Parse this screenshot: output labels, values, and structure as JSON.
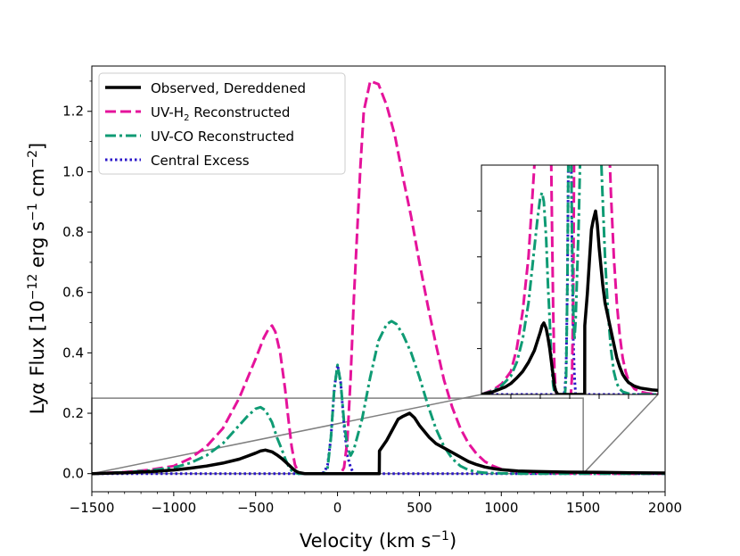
{
  "chart_data": {
    "type": "line",
    "title": "",
    "xlabel": {
      "base": "Velocity (km s",
      "sup": "−1",
      "tail": ")"
    },
    "ylabel": {
      "base": "Lyα Flux [10",
      "sup1": "−12",
      "mid": " erg s",
      "sup2": "−1",
      "mid2": " cm",
      "sup3": "−2",
      "tail": "]"
    },
    "xlim": [
      -1500,
      2000
    ],
    "ylim": [
      -0.06,
      1.35
    ],
    "xticks": [
      -1500,
      -1000,
      -500,
      0,
      500,
      1000,
      1500,
      2000
    ],
    "xtick_labels": [
      "−1500",
      "−1000",
      "−500",
      "0",
      "500",
      "1000",
      "1500",
      "2000"
    ],
    "yticks": [
      0.0,
      0.2,
      0.4,
      0.6,
      0.8,
      1.0,
      1.2
    ],
    "ytick_labels": [
      "0.0",
      "0.2",
      "0.4",
      "0.6",
      "0.8",
      "1.0",
      "1.2"
    ],
    "legend_position": "top-left",
    "series": [
      {
        "name": "Observed, Dereddened",
        "color": "#000000",
        "style": "solid",
        "x": [
          -1500,
          -1300,
          -1100,
          -1000,
          -900,
          -800,
          -700,
          -600,
          -550,
          -500,
          -470,
          -440,
          -400,
          -370,
          -340,
          -320,
          -300,
          -280,
          -260,
          -240,
          -200,
          -100,
          0,
          100,
          200,
          255,
          256,
          300,
          340,
          370,
          400,
          440,
          470,
          500,
          560,
          600,
          650,
          700,
          750,
          800,
          850,
          900,
          950,
          1000,
          1100,
          1200,
          1400,
          1600,
          1800,
          2000
        ],
        "y": [
          0.0,
          0.003,
          0.008,
          0.012,
          0.018,
          0.025,
          0.035,
          0.048,
          0.058,
          0.068,
          0.075,
          0.078,
          0.072,
          0.062,
          0.05,
          0.04,
          0.03,
          0.02,
          0.01,
          0.004,
          0.0,
          0.0,
          0.0,
          0.0,
          0.0,
          0.0,
          0.075,
          0.11,
          0.15,
          0.18,
          0.19,
          0.2,
          0.185,
          0.16,
          0.12,
          0.1,
          0.085,
          0.07,
          0.055,
          0.04,
          0.03,
          0.022,
          0.017,
          0.013,
          0.009,
          0.007,
          0.005,
          0.004,
          0.003,
          0.002
        ]
      },
      {
        "name": "UV-H2 Reconstructed",
        "label_base": "UV-H",
        "label_sub": "2",
        "label_tail": " Reconstructed",
        "color": "#e5139b",
        "style": "dashed",
        "x": [
          -1500,
          -1300,
          -1150,
          -1000,
          -900,
          -800,
          -700,
          -600,
          -500,
          -450,
          -420,
          -400,
          -380,
          -350,
          -320,
          -300,
          -280,
          -260,
          -240,
          -220,
          -200,
          -180,
          -160,
          -140,
          -120,
          -100,
          -80,
          -60,
          -40,
          -20,
          0,
          20,
          40,
          60,
          80,
          100,
          140,
          160,
          200,
          250,
          300,
          350,
          400,
          450,
          500,
          550,
          600,
          650,
          700,
          750,
          800,
          850,
          900,
          950,
          1000,
          1100,
          1200,
          1300,
          1500,
          2000
        ],
        "y": [
          0.0,
          0.005,
          0.012,
          0.025,
          0.05,
          0.09,
          0.15,
          0.25,
          0.38,
          0.45,
          0.48,
          0.49,
          0.47,
          0.4,
          0.28,
          0.18,
          0.09,
          0.03,
          0.005,
          0.0,
          0.0,
          0.0,
          0.0,
          0.0,
          0.0,
          0.0,
          0.0,
          0.0,
          0.0,
          0.0,
          0.0,
          0.0,
          0.02,
          0.11,
          0.32,
          0.58,
          1.02,
          1.2,
          1.3,
          1.29,
          1.22,
          1.12,
          0.98,
          0.85,
          0.7,
          0.56,
          0.43,
          0.31,
          0.22,
          0.15,
          0.1,
          0.065,
          0.04,
          0.025,
          0.015,
          0.006,
          0.003,
          0.0015,
          0.0,
          0.0
        ]
      },
      {
        "name": "UV-CO Reconstructed",
        "color": "#0f9b74",
        "style": "dashdot",
        "x": [
          -1500,
          -1300,
          -1150,
          -1000,
          -900,
          -800,
          -700,
          -600,
          -550,
          -500,
          -470,
          -440,
          -400,
          -370,
          -340,
          -320,
          -300,
          -280,
          -260,
          -240,
          -220,
          -200,
          -180,
          -160,
          -140,
          -120,
          -100,
          -80,
          -60,
          -40,
          -20,
          0,
          20,
          40,
          60,
          80,
          100,
          150,
          200,
          250,
          300,
          330,
          360,
          400,
          450,
          500,
          550,
          600,
          650,
          700,
          750,
          800,
          850,
          900,
          1000,
          1100,
          1200,
          1500,
          2000
        ],
        "y": [
          0.0,
          0.004,
          0.01,
          0.02,
          0.035,
          0.06,
          0.1,
          0.16,
          0.19,
          0.215,
          0.22,
          0.21,
          0.17,
          0.12,
          0.08,
          0.05,
          0.025,
          0.01,
          0.003,
          0.0,
          0.0,
          0.0,
          0.0,
          0.0,
          0.0,
          0.0,
          0.0,
          0.0,
          0.02,
          0.12,
          0.28,
          0.36,
          0.3,
          0.17,
          0.09,
          0.06,
          0.08,
          0.18,
          0.32,
          0.44,
          0.495,
          0.505,
          0.495,
          0.46,
          0.4,
          0.32,
          0.23,
          0.15,
          0.09,
          0.05,
          0.025,
          0.012,
          0.006,
          0.003,
          0.001,
          0.0,
          0.0,
          0.0,
          0.0
        ]
      },
      {
        "name": "Central Excess",
        "color": "#2a16c8",
        "style": "dotted",
        "x": [
          -1500,
          -200,
          -100,
          -80,
          -60,
          -40,
          -20,
          0,
          20,
          40,
          60,
          80,
          100,
          200,
          2000
        ],
        "y": [
          0.0,
          0.0,
          0.0,
          0.005,
          0.03,
          0.12,
          0.28,
          0.36,
          0.3,
          0.16,
          0.06,
          0.02,
          0.0,
          0.0,
          0.0
        ]
      }
    ],
    "inset": {
      "zoom_xlim": [
        -1500,
        1500
      ],
      "zoom_ylim": [
        0.0,
        0.25
      ]
    }
  }
}
